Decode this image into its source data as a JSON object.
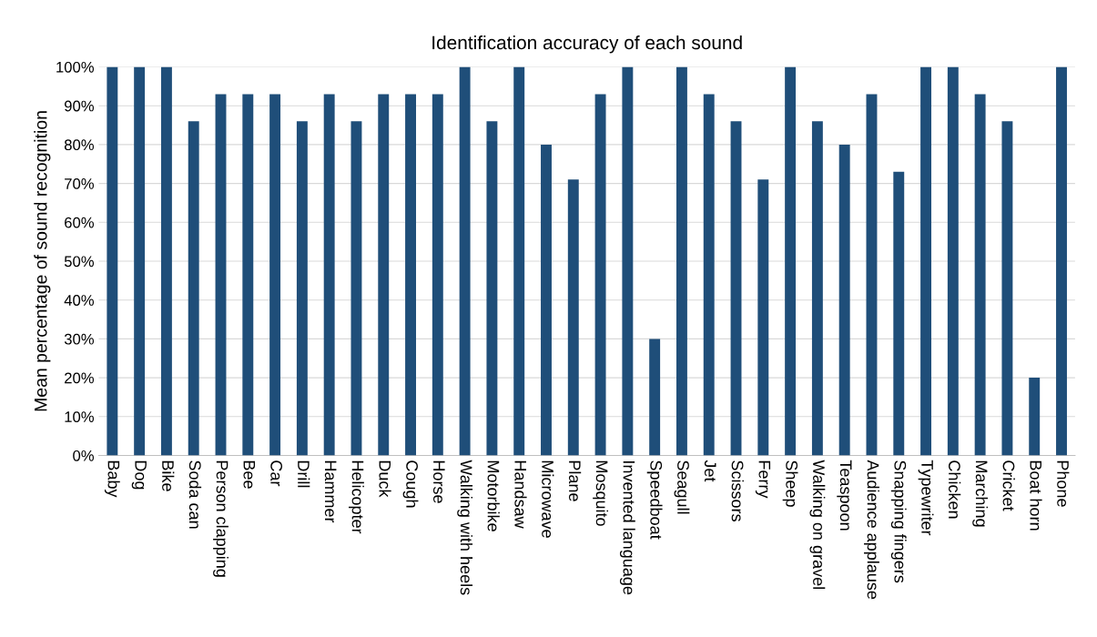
{
  "chart_data": {
    "type": "bar",
    "title": "Identification accuracy of each sound",
    "ylabel": "Mean percentage of sound recognition",
    "categories": [
      "Baby",
      "Dog",
      "Bike",
      "Soda can",
      "Person clapping",
      "Bee",
      "Car",
      "Drill",
      "Hammer",
      "Helicopter",
      "Duck",
      "Cough",
      "Horse",
      "Walking with heels",
      "Motorbike",
      "Handsaw",
      "Microwave",
      "Plane",
      "Mosquito",
      "Invented language",
      "Speedboat",
      "Seagull",
      "Jet",
      "Scissors",
      "Ferry",
      "Sheep",
      "Walking on gravel",
      "Teaspoon",
      "Audience applause",
      "Snapping fingers",
      "Typewriter",
      "Chicken",
      "Marching",
      "Cricket",
      "Boat horn",
      "Phone"
    ],
    "values": [
      100,
      100,
      100,
      86,
      93,
      93,
      93,
      86,
      93,
      86,
      93,
      93,
      93,
      100,
      86,
      100,
      80,
      71,
      93,
      100,
      30,
      100,
      93,
      86,
      71,
      100,
      86,
      80,
      93,
      73,
      100,
      100,
      93,
      86,
      20,
      100
    ],
    "color": "#1f4e79",
    "ylim": [
      0,
      100
    ],
    "yticks": [
      {
        "value": 0,
        "label": "0%"
      },
      {
        "value": 10,
        "label": "10%"
      },
      {
        "value": 20,
        "label": "20%"
      },
      {
        "value": 30,
        "label": "30%"
      },
      {
        "value": 40,
        "label": "40%"
      },
      {
        "value": 50,
        "label": "50%"
      },
      {
        "value": 60,
        "label": "60%"
      },
      {
        "value": 70,
        "label": "70%"
      },
      {
        "value": 80,
        "label": "80%"
      },
      {
        "value": 90,
        "label": "90%"
      },
      {
        "value": 100,
        "label": "100%"
      }
    ],
    "grid": "y"
  }
}
